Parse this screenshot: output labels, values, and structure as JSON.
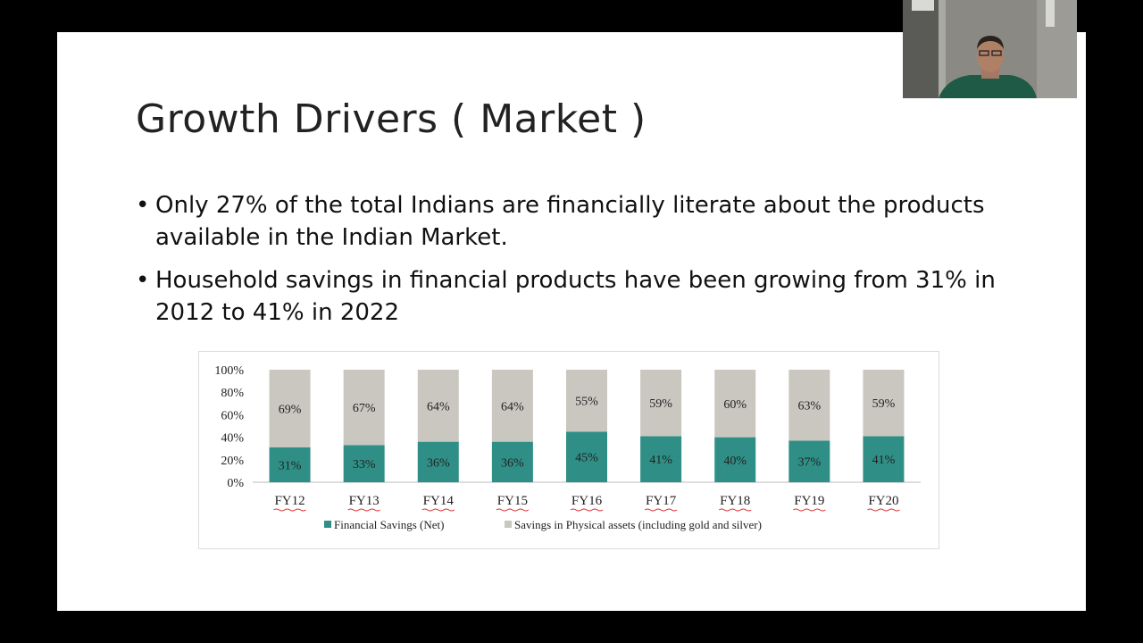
{
  "slide": {
    "title": "Growth Drivers ( Market )",
    "bullets": [
      "Only 27% of the total Indians are financially literate about the products available in the Indian Market.",
      "Household savings in financial products have been growing from 31% in 2012 to 41% in 2022"
    ],
    "bullet_glyph": "•"
  },
  "chart_data": {
    "type": "bar",
    "stacked": true,
    "categories": [
      "FY12",
      "FY13",
      "FY14",
      "FY15",
      "FY16",
      "FY17",
      "FY18",
      "FY19",
      "FY20"
    ],
    "series": [
      {
        "name": "Financial Savings (Net)",
        "values": [
          31,
          33,
          36,
          36,
          45,
          41,
          40,
          37,
          41
        ],
        "color": "#2f8f86"
      },
      {
        "name": "Savings in Physical assets (including gold and silver)",
        "values": [
          69,
          67,
          64,
          64,
          55,
          59,
          60,
          63,
          59
        ],
        "color": "#c9c7bf"
      }
    ],
    "ylim": [
      0,
      100
    ],
    "yticks": [
      "0%",
      "20%",
      "40%",
      "60%",
      "80%",
      "100%"
    ],
    "legend_position": "bottom",
    "value_suffix": "%"
  },
  "webcam": {
    "label": "presenter-video"
  }
}
